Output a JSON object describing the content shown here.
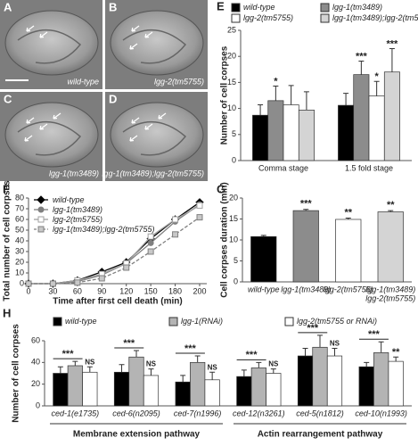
{
  "image_panels": [
    {
      "letter": "A",
      "caption": "wild-type"
    },
    {
      "letter": "B",
      "caption": "lgg-2(tm5755)"
    },
    {
      "letter": "C",
      "caption": "lgg-1(tm3489)"
    },
    {
      "letter": "D",
      "caption": "lgg-1(tm3489);lgg-2(tm5755)"
    }
  ],
  "chart_data": [
    {
      "type": "bar",
      "panel": "E",
      "ylabel": "Number of cell corpses",
      "legend": "top",
      "categories": [
        "Comma stage",
        "1.5 fold stage"
      ],
      "ylim": [
        0,
        25
      ],
      "yticks": [
        0,
        5,
        10,
        15,
        20,
        25
      ],
      "series": [
        {
          "name": "wild-type",
          "color": "#000000",
          "values": [
            8.7,
            10.6
          ],
          "errors": [
            2.0,
            2.3
          ],
          "significance": [
            null,
            null
          ]
        },
        {
          "name": "lgg-1(tm3489)",
          "color": "#8c8c8c",
          "values": [
            11.5,
            16.5
          ],
          "errors": [
            2.8,
            2.6
          ],
          "significance": [
            "*",
            "***"
          ]
        },
        {
          "name": "lgg-2(tm5755)",
          "color": "#ffffff",
          "values": [
            10.7,
            12.4
          ],
          "errors": [
            3.7,
            2.8
          ],
          "significance": [
            null,
            "*"
          ]
        },
        {
          "name": "lgg-1(tm3489);lgg-2(tm5755)",
          "color": "#d4d4d4",
          "values": [
            9.7,
            17.0
          ],
          "errors": [
            3.5,
            4.5
          ],
          "significance": [
            null,
            "***"
          ]
        }
      ]
    },
    {
      "type": "line",
      "panel": "F",
      "ylabel": "Total number of cell corpses",
      "xlabel": "Time after first cell death (min)",
      "legend": "upper left",
      "categories": [
        "0",
        "30",
        "60",
        "90",
        "120",
        "150",
        "180",
        "200"
      ],
      "ylim": [
        0,
        80
      ],
      "yticks": [
        0,
        10,
        20,
        30,
        40,
        50,
        60,
        70,
        80
      ],
      "series": [
        {
          "name": "wild-type",
          "color": "#000000",
          "marker": "diamond",
          "fill": "#000000",
          "dashed": false,
          "values": [
            0,
            0,
            3,
            11,
            20,
            42,
            60,
            76
          ]
        },
        {
          "name": "lgg-1(tm3489)",
          "color": "#808080",
          "marker": "circle",
          "fill": "#808080",
          "dashed": false,
          "values": [
            0,
            0,
            2,
            8,
            19,
            38,
            58,
            74
          ]
        },
        {
          "name": "lgg-2(tm5755)",
          "color": "#a0a0a0",
          "marker": "square",
          "fill": "#ffffff",
          "dashed": false,
          "values": [
            0,
            0,
            3,
            9,
            19,
            44,
            60,
            73
          ]
        },
        {
          "name": "lgg-1(tm3489);lgg-2(tm5755)",
          "color": "#808080",
          "marker": "square",
          "fill": "#c8c8c8",
          "dashed": true,
          "values": [
            0,
            0,
            1,
            5,
            15,
            30,
            46,
            62
          ]
        }
      ]
    },
    {
      "type": "bar",
      "panel": "G",
      "ylabel": "Cell corpses duration (min)",
      "categories": [
        "wild-type",
        "lgg-1(tm3489)",
        "lgg-2(tm5755)",
        [
          "lgg-1(tm3489)",
          "lgg-2(tm5755)"
        ]
      ],
      "ylim": [
        0,
        20
      ],
      "yticks": [
        0,
        5,
        10,
        15,
        20
      ],
      "values": [
        10.8,
        17.0,
        14.9,
        16.7
      ],
      "errors": [
        0.3,
        0.3,
        0.3,
        0.3
      ],
      "colors": [
        "#000000",
        "#8c8c8c",
        "#ffffff",
        "#d4d4d4"
      ],
      "significance": [
        null,
        "***",
        "**",
        "**"
      ]
    },
    {
      "type": "bar",
      "panel": "H",
      "ylabel": "Number of cell corpses",
      "legend": "top",
      "sig_bracket": true,
      "categories": [
        "ced-1(e1735)",
        "ced-6(n2095)",
        "ced-7(n1996)",
        "ced-12(n3261)",
        "ced-5(n1812)",
        "ced-10(n1993)"
      ],
      "group_labels": [
        "Membrane extension pathway",
        "Actin rearrangement pathway"
      ],
      "ylim": [
        0,
        60
      ],
      "yticks": [
        0,
        20,
        40,
        60
      ],
      "series": [
        {
          "name": "wild-type",
          "color": "#000000",
          "values": [
            30,
            31,
            22,
            27,
            46,
            36
          ],
          "errors": [
            6,
            7,
            6,
            6,
            7,
            4
          ],
          "significance": [
            null,
            null,
            null,
            null,
            null,
            null
          ]
        },
        {
          "name": "lgg-1(RNAi)",
          "color": "#b4b4b4",
          "values": [
            37,
            45,
            40,
            35,
            54,
            49
          ],
          "errors": [
            4,
            6,
            6,
            5,
            11,
            10
          ],
          "significance": [
            "***",
            "***",
            "***",
            "***",
            "***",
            "***"
          ]
        },
        {
          "name": "lgg-2(tm5755 or RNAi)",
          "color": "#ffffff",
          "values": [
            31,
            28,
            24,
            30,
            46,
            41
          ],
          "errors": [
            5,
            6,
            7,
            4,
            7,
            4
          ],
          "significance": [
            "NS",
            "NS",
            "NS",
            "NS",
            "NS",
            "**"
          ]
        }
      ]
    }
  ]
}
